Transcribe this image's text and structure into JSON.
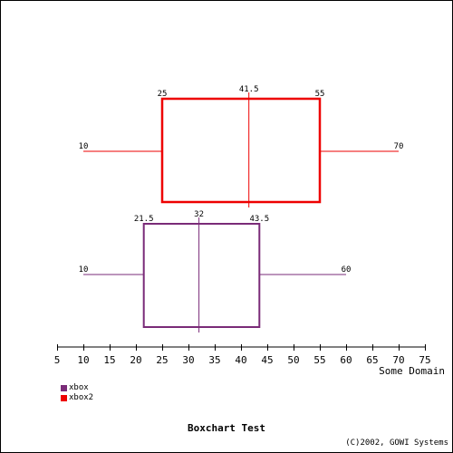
{
  "chart_data": {
    "type": "boxplot",
    "title": "Boxchart Test",
    "xlabel": "Some Domain",
    "footer": "(C)2002, GOWI Systems",
    "xlim": [
      5,
      75
    ],
    "xticks": [
      5,
      10,
      15,
      20,
      25,
      30,
      35,
      40,
      45,
      50,
      55,
      60,
      65,
      70,
      75
    ],
    "series": [
      {
        "name": "xbox2",
        "color": "#ee0000",
        "min": 10,
        "q1": 25,
        "median": 41.5,
        "q3": 55,
        "max": 70,
        "labels": {
          "min": "10",
          "q1": "25",
          "median": "41.5",
          "q3": "55",
          "max": "70"
        }
      },
      {
        "name": "xbox",
        "color": "#7a2b78",
        "min": 10,
        "q1": 21.5,
        "median": 32,
        "q3": 43.5,
        "max": 60,
        "labels": {
          "min": "10",
          "q1": "21.5",
          "median": "32",
          "q3": "43.5",
          "max": "60"
        }
      }
    ],
    "legend": [
      {
        "name": "xbox",
        "color": "#7a2b78"
      },
      {
        "name": "xbox2",
        "color": "#ee0000"
      }
    ]
  }
}
